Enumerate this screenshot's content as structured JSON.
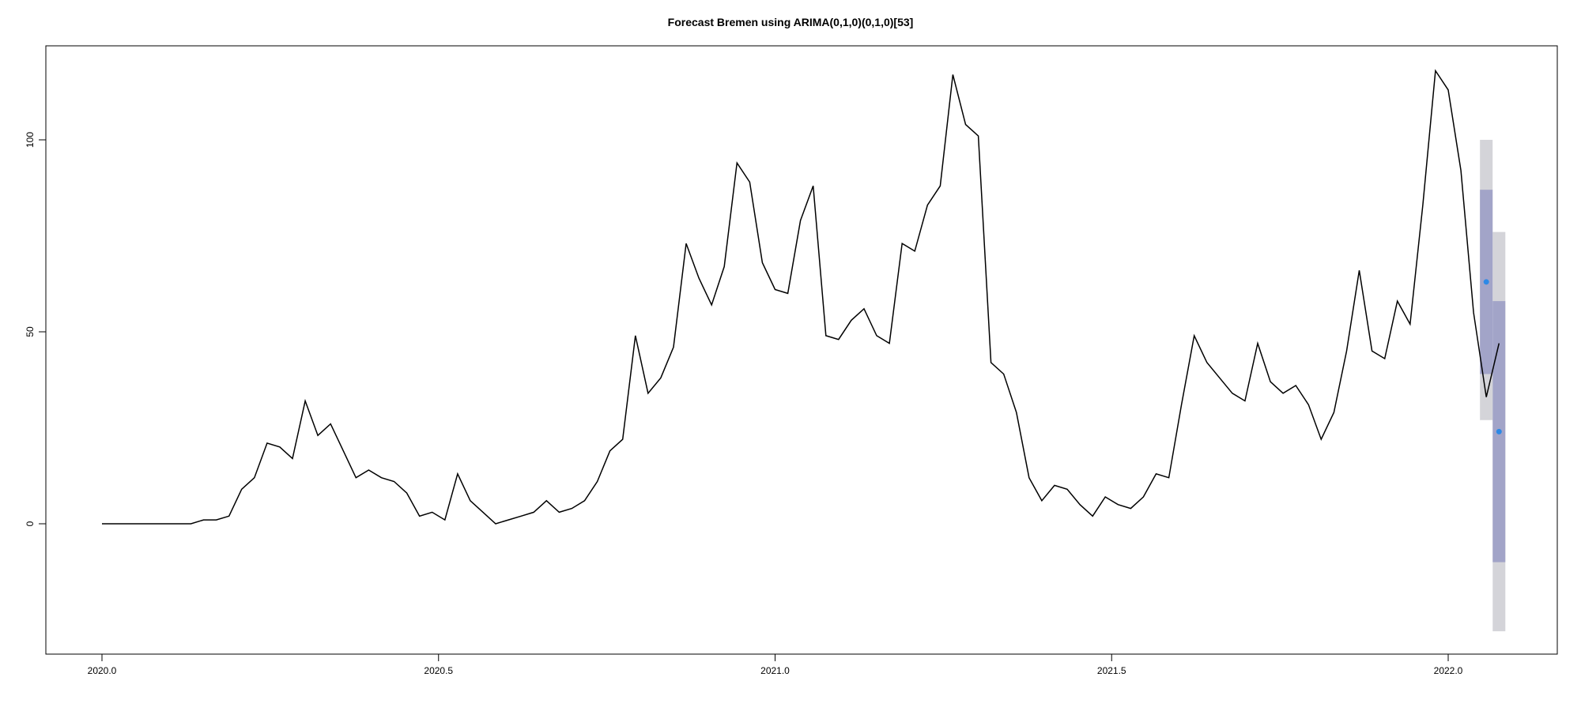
{
  "chart_data": {
    "type": "line",
    "title": "Forecast Bremen using ARIMA(0,1,0)(0,1,0)[53]",
    "xlabel": "",
    "ylabel": "",
    "xlim": [
      1.9916,
      2.0787
    ],
    "ylim": [
      -33,
      125
    ],
    "x_ticks": [
      {
        "value": 2020.0,
        "label": "2020.0"
      },
      {
        "value": 2020.5,
        "label": "2020.5"
      },
      {
        "value": 2021.0,
        "label": "2021.0"
      },
      {
        "value": 2021.5,
        "label": "2021.5"
      },
      {
        "value": 2022.0,
        "label": "2022.0"
      }
    ],
    "y_ticks": [
      {
        "value": 0,
        "label": "0"
      },
      {
        "value": 50,
        "label": "50"
      },
      {
        "value": 100,
        "label": "100"
      }
    ],
    "grid": false,
    "series": [
      {
        "x_start": 2020.0,
        "x_step": 0.018868,
        "values": [
          0,
          0,
          0,
          0,
          0,
          0,
          0,
          0,
          1,
          1,
          2,
          9,
          12,
          21,
          20,
          17,
          32,
          23,
          26,
          19,
          12,
          14,
          12,
          11,
          8,
          2,
          3,
          1,
          13,
          6,
          3,
          0,
          1,
          2,
          3,
          6,
          3,
          4,
          6,
          11,
          19,
          22,
          49,
          34,
          38,
          46,
          73,
          64,
          57,
          67,
          94,
          89,
          68,
          61,
          60,
          79,
          88,
          49,
          48,
          53,
          56,
          49,
          47,
          73,
          71,
          83,
          88,
          117,
          104,
          101,
          42,
          39,
          29,
          12,
          6,
          10,
          9,
          5,
          2,
          7,
          5,
          4,
          7,
          13,
          12,
          31,
          49,
          42,
          38,
          34,
          32,
          47,
          37,
          34,
          36,
          31,
          22,
          29,
          45,
          66,
          45,
          43,
          58,
          52,
          83,
          118,
          113,
          92,
          55,
          33,
          47
        ],
        "color": "#000000"
      }
    ],
    "forecast": {
      "points": [
        {
          "x": 2022.0566,
          "mean": 63,
          "lo80": 39,
          "hi80": 87,
          "lo95": 27,
          "hi95": 100
        },
        {
          "x": 2022.0755,
          "mean": 24,
          "lo80": -10,
          "hi80": 58,
          "lo95": -28,
          "hi95": 76
        }
      ],
      "color_mean": "#2d89e6",
      "color_80": "#a2a4c8",
      "color_95": "#d4d4d9"
    }
  }
}
